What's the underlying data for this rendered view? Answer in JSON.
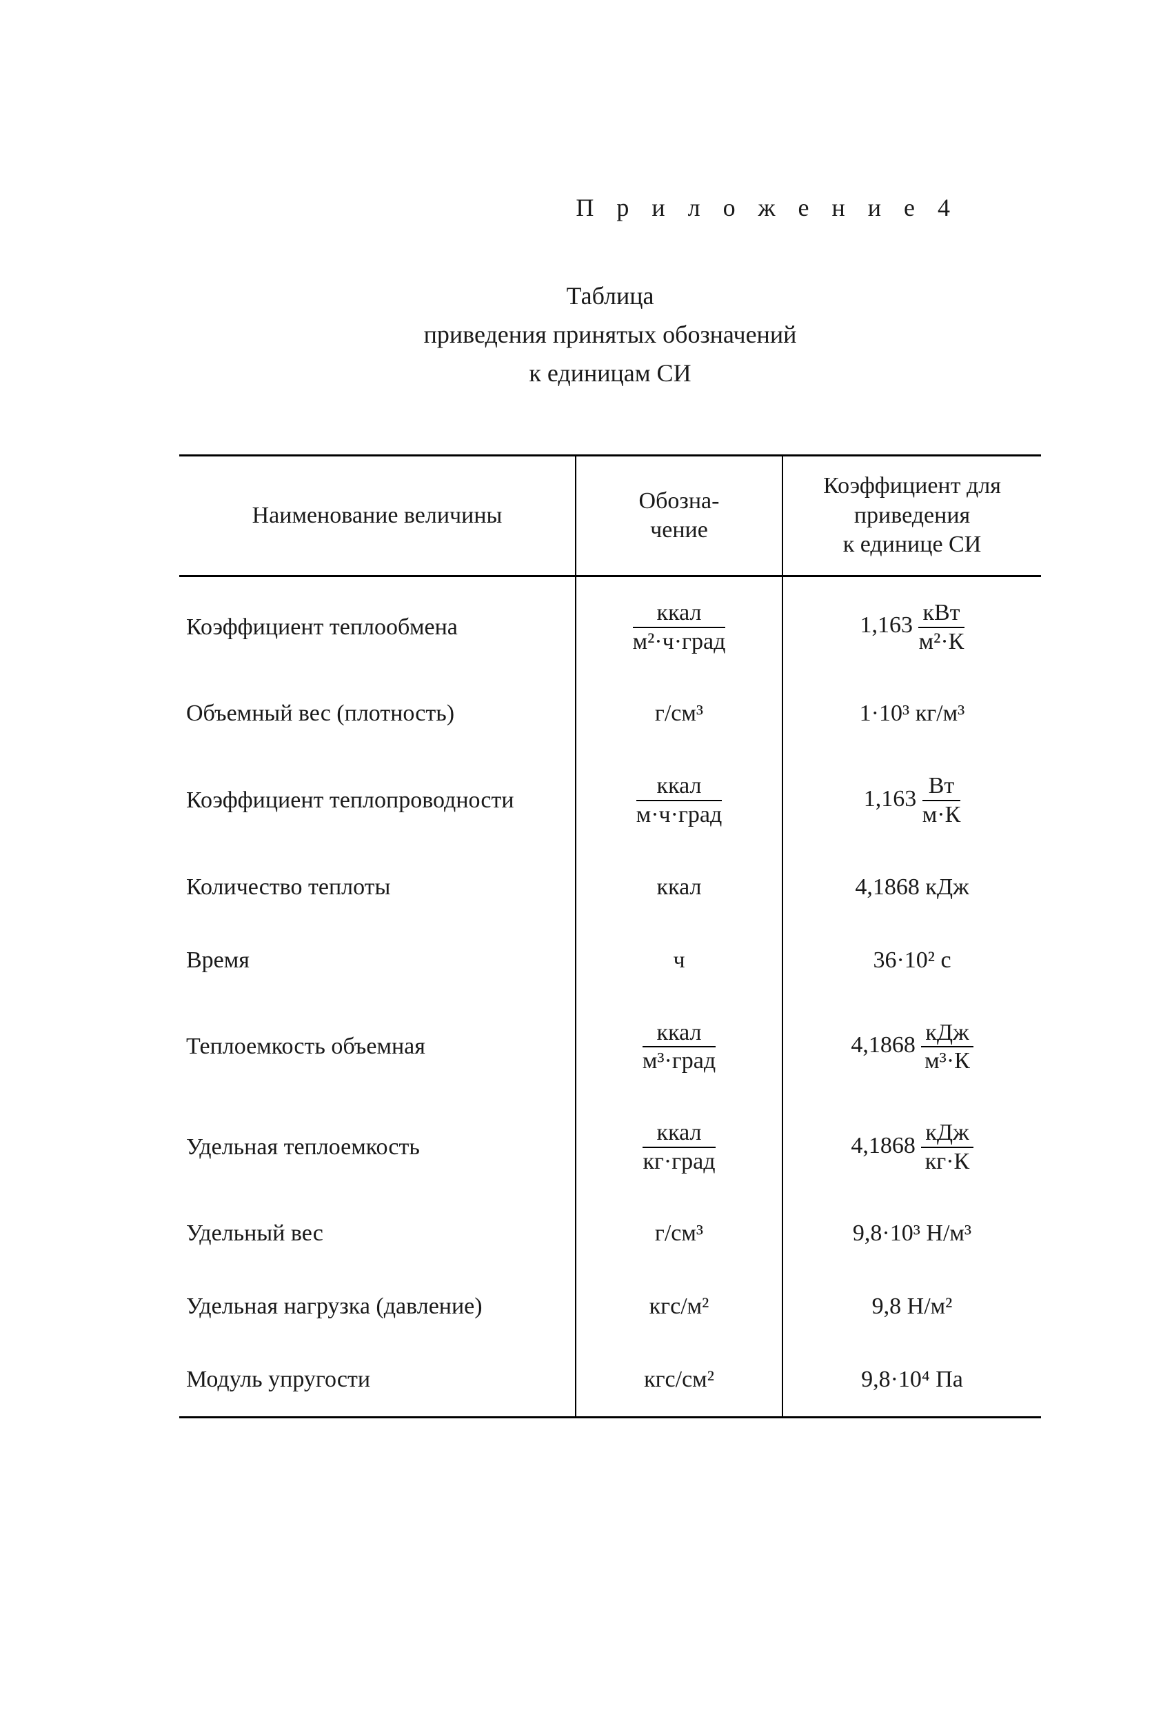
{
  "colors": {
    "text": "#1a1a1a",
    "background": "#ffffff",
    "rule": "#000000"
  },
  "typography": {
    "body_fontsize_pt": 24,
    "family": "typewriter-serif"
  },
  "appendix_label": "П р и л о ж е н и е  4",
  "title_lines": [
    "Таблица",
    "приведения принятых обозначений",
    "к единицам СИ"
  ],
  "table": {
    "columns": [
      {
        "key": "name",
        "label": "Наименование величины",
        "width_pct": 46
      },
      {
        "key": "unit",
        "label": "Обозна-\nчение",
        "width_pct": 24
      },
      {
        "key": "coef",
        "label": "Коэффициент для\nприведения\nк единице СИ",
        "width_pct": 30
      }
    ],
    "rows": [
      {
        "name": "Коэффициент теплообмена",
        "unit": {
          "type": "frac",
          "num": "ккал",
          "den": "м²·ч·град",
          "num_underlined": true
        },
        "coef": {
          "type": "composite",
          "prefix": "1,163",
          "frac": {
            "num": "кВт",
            "den": "м²·К"
          }
        }
      },
      {
        "name": "Объемный вес (плотность)",
        "unit": {
          "type": "plain",
          "value": "г/см³"
        },
        "coef": {
          "type": "plain",
          "value": "1·10³ кг/м³"
        }
      },
      {
        "name": "Коэффициент теплопроводности",
        "unit": {
          "type": "frac",
          "num": "ккал",
          "den": "м·ч·град",
          "num_underlined": true
        },
        "coef": {
          "type": "composite",
          "prefix": "1,163",
          "frac": {
            "num": "Вт",
            "den": "м·К"
          }
        }
      },
      {
        "name": "Количество теплоты",
        "unit": {
          "type": "plain",
          "value": "ккал"
        },
        "coef": {
          "type": "plain",
          "value": "4,1868 кДж"
        }
      },
      {
        "name": "Время",
        "unit": {
          "type": "plain",
          "value": "ч"
        },
        "coef": {
          "type": "plain",
          "value": "36·10² с"
        }
      },
      {
        "name": "Теплоемкость объемная",
        "unit": {
          "type": "frac",
          "num": "ккал",
          "den": "м³·град",
          "num_underlined": true
        },
        "coef": {
          "type": "composite",
          "prefix": "4,1868",
          "frac": {
            "num": "кДж",
            "den": "м³·К"
          }
        }
      },
      {
        "name": "Удельная теплоемкость",
        "unit": {
          "type": "frac",
          "num": "ккал",
          "den": "кг·град",
          "num_underlined": true
        },
        "coef": {
          "type": "composite",
          "prefix": "4,1868",
          "frac": {
            "num": "кДж",
            "den": "кг·К"
          }
        }
      },
      {
        "name": "Удельный вес",
        "unit": {
          "type": "plain",
          "value": "г/см³"
        },
        "coef": {
          "type": "plain",
          "value": "9,8·10³ Н/м³"
        }
      },
      {
        "name": "Удельная нагрузка (давление)",
        "unit": {
          "type": "plain",
          "value": "кгс/м²"
        },
        "coef": {
          "type": "plain",
          "value": "9,8 Н/м²"
        }
      },
      {
        "name": "Модуль упругости",
        "unit": {
          "type": "plain",
          "value": "кгс/см²"
        },
        "coef": {
          "type": "plain",
          "value": "9,8·10⁴ Па"
        }
      }
    ]
  }
}
